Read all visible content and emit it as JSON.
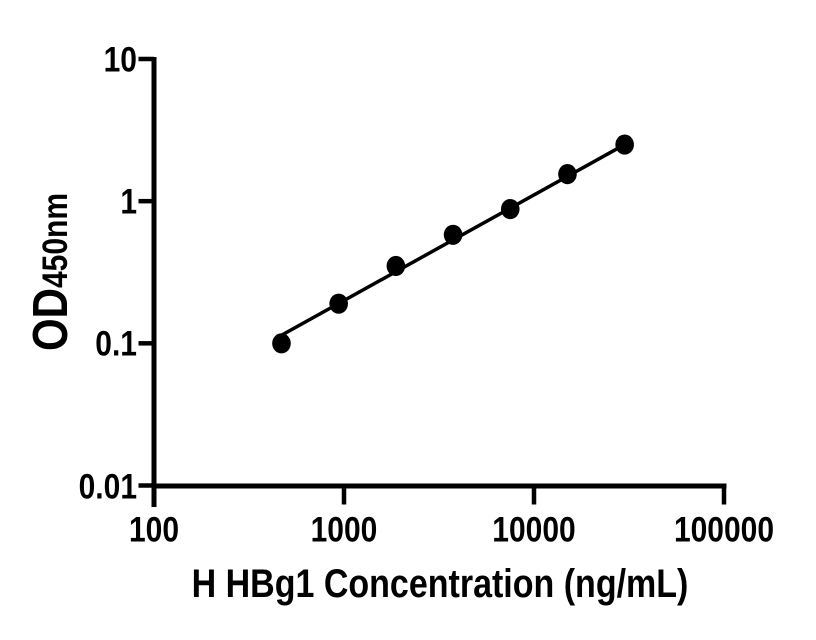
{
  "chart_data": {
    "type": "scatter",
    "title": "",
    "xlabel": "H HBg1 Concentration (ng/mL)",
    "ylabel_main": "OD",
    "ylabel_sub": "450nm",
    "x_scale": "log10",
    "y_scale": "log10",
    "xlim": [
      100,
      100000
    ],
    "ylim": [
      0.01,
      10
    ],
    "x_ticks": [
      100,
      1000,
      10000,
      100000
    ],
    "x_tick_labels": [
      "100",
      "1000",
      "10000",
      "100000"
    ],
    "y_ticks": [
      0.01,
      0.1,
      1,
      10
    ],
    "y_tick_labels": [
      "0.01",
      "0.1",
      "1",
      "10"
    ],
    "grid": "off",
    "legend": "none",
    "series": [
      {
        "name": "standard-curve-points",
        "marker": "filled-circle",
        "points": [
          {
            "x": 468.75,
            "od": 0.1
          },
          {
            "x": 937.5,
            "od": 0.19
          },
          {
            "x": 1875,
            "od": 0.35
          },
          {
            "x": 3750,
            "od": 0.58
          },
          {
            "x": 7500,
            "od": 0.88
          },
          {
            "x": 15000,
            "od": 1.55
          },
          {
            "x": 30000,
            "od": 2.5
          }
        ]
      }
    ],
    "fit_line": {
      "name": "linear-fit",
      "endpoints": [
        {
          "x": 468.75,
          "od": 0.114
        },
        {
          "x": 30000,
          "od": 2.5
        }
      ]
    },
    "colors": {
      "marker": "#000000",
      "line": "#000000",
      "axis": "#000000",
      "text": "#000000",
      "background": "#ffffff"
    }
  }
}
